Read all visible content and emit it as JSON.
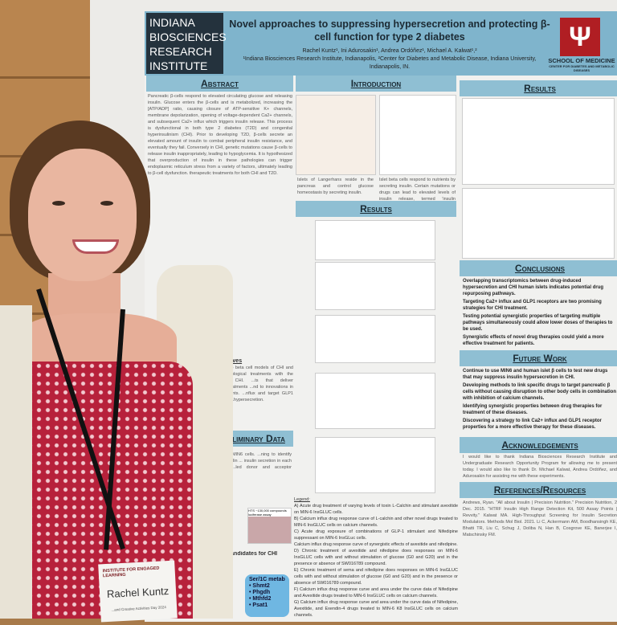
{
  "poster": {
    "institute_logo": "INDIANA BIOSCIENCES RESEARCH INSTITUTE",
    "title": "Novel approaches to suppressing hypersecretion and protecting β-cell function for type 2 diabetes",
    "authors": "Rachel Kuntz¹, Ini Adurosakin¹, Andrea Ordóñez¹, Michael A. Kalwat¹,²",
    "affiliations": "¹Indiana Biosciences Research Institute, Indianapolis, ²Center for Diabetes and Metabolic Disease, Indiana University, Indianapolis, IN.",
    "school_logo": "Ψ",
    "school": "SCHOOL OF MEDICINE",
    "school_sub": "CENTER FOR DIABETES AND METABOLIC DISEASES",
    "sections": {
      "abstract": "Abstract",
      "introduction": "Introduction",
      "results_center": "Results",
      "results_right": "Results",
      "objectives": "Overall Objectives",
      "preliminary": "Preliminary Data",
      "conclusions": "Conclusions",
      "future": "Future Work",
      "acknowledgements": "Acknowledgements",
      "references": "References/Resources"
    },
    "abstract_text": "Pancreatic β-cells respond to elevated circulating glucose and releasing insulin. Glucose enters the β-cells and is metabolized, increasing the [ATP/ADP] ratio, causing closure of ATP-sensitive K+ channels, membrane depolarization, opening of voltage-dependent Ca2+ channels, and subsequent Ca2+ influx which triggers insulin release. This process is dysfunctional in both type 2 diabetes (T2D) and congenital hyperinsulinism (CHI). Prior to developing T2D, β-cells secrete an elevated amount of insulin to combat peripheral insulin resistance, and eventually they fail. Conversely in CHI, genetic mutations cause β-cells to release insulin inappropriately, leading to hypoglycemia. It is hypothesized that overproduction of insulin in these pathologies can trigger endoplasmic reticulum stress from a variety of factors, ultimately leading to β-cell dysfunction.",
    "abstract_end": "therapeutic treatments for both CHI and T2D.",
    "intro_caption_1": "Islets of Langerhans reside in the pancreas and control glucose homeostasis by secreting insulin.",
    "intro_caption_2": "Islet beta cells respond to nutrients by secreting insulin. Certain mutations or drugs can lead to elevated levels of insulin release, termed 'insulin hypersecretion.'",
    "objectives_text": "...arch is to develop beta cell models of CHI and ...ing of pharmacological treatments with the ...production in CHI. ...ts that deliver pharmacological treatments ...nd to innovations in therapeutic treatments. ...nflux and target GLP1 receptors to inhibit ...hypersecretion.",
    "prelim_text": "...iferase MIN6 cells. ...ning to identify novel insulin ... insulin secretion in each sample ...led donor and acceptor antibodies",
    "prelim_hts": "HTS ~130,000 compounds luciferase assay",
    "candidates": "...ing candidates for CHI",
    "ser_box": {
      "title": "Ser/1C metab",
      "items": [
        "Shmt2",
        "Phgdh",
        "Mthfd2",
        "Psat1"
      ]
    },
    "legend_title": "Legend:",
    "legend": [
      "A) Acute drug treatment of varying levels of toxin L-Calchin and stimulant avexitide on MIN-6 InsGLUC cells.",
      "B) Calcium influx drug response curve of L-calchin and other novel drugs treated to MIN-6 InsGLUC cells on calcium channels.",
      "C) Acute drug exposure of combinations of GLP-1 stimulant and Nifedipine suppressant on MIN-6 InsGLuc cells.",
      "Calcium influx drug response curve of synergistic effects of avexitide and nifedipine.",
      "D) Chronic treatment of avexitide and nifedipine does responses on MIN-6 InsGLUC cells with and without stimulation of glucose (G0 and G20) and in the presence or absence of SW016789 compound.",
      "E) Chronic treatment of sema and nifedipine does responses on MIN-6 InsGLUC cells with and without stimulation of glucose (G0 and G20) and in the presence or absence of SW016789 compound.",
      "F) Calcium influx drug response curve and area under the curve data of Nifedipine and Avexitide drugs treated to MIN-6 InsGLUC cells on calcium channels.",
      "G) Calcium influx drug response curve and area under the curve data of Nifedipine, Avexitide, and Exendin-4 drugs treated to MIN-6 K8 InsGLUC cells on calcium channels."
    ],
    "conclusions": [
      "Overlapping transcriptomics between drug-induced hypersecretion and CHI human islets indicates potential drug repurposing pathways.",
      "Targeting Ca2+ influx and GLP1 receptors are two promising strategies for CHI treatment.",
      "Testing potential synergistic properties of targeting multiple pathways simultaneously could allow lower doses of therapies to be used.",
      "Synergistic effects of novel drug therapies could yield a more effective treatment for patients."
    ],
    "future": [
      "Continue to use MIN6 and human islet β cells to test new drugs that may suppress insulin hypersecretion in CHI.",
      "Developing methods to link specific drugs to target pancreatic β cells without causing disruption to other body cells in combination with inhibition of calcium channels.",
      "Identifying synergistic properties between drug therapies for treatment of these diseases.",
      "Discovering a strategy to link Ca2+ influx and GLP1 receptor properties for a more effective therapy for these diseases."
    ],
    "acknowledgements_text": "I would like to thank Indiana Biosciences Research Institute and Undergraduate Research Opportunity Program for allowing me to present today. I would also like to thank Dr. Michael Kalwat, Andrea Ordóñez, and Adurosakin for assisting me with these experiments.",
    "references_text": "Andrews, Ryan. \"All about Insulin | Precision Nutrition.\" Precision Nutrition, 2 Dec. 2015. \"HTRF Insulin High Range Detection Kit, 500 Assay Points | Revvity.\" Kalwat MA. High-Throughput Screening for Insulin Secretion Modulators. Methods Mol Biol. 2021. Li C, Ackermann AM, Boodhansingh KE, Bhatti TR, Liu C, Schug J, Doliba N, Han B, Cosgrove KE, Banerjee I, Matschinsky FM."
  },
  "badge": {
    "org": "INSTITUTE FOR ENGAGED LEARNING",
    "name": "Rachel Kuntz",
    "event": "...and Creative Activities Day 2024"
  }
}
